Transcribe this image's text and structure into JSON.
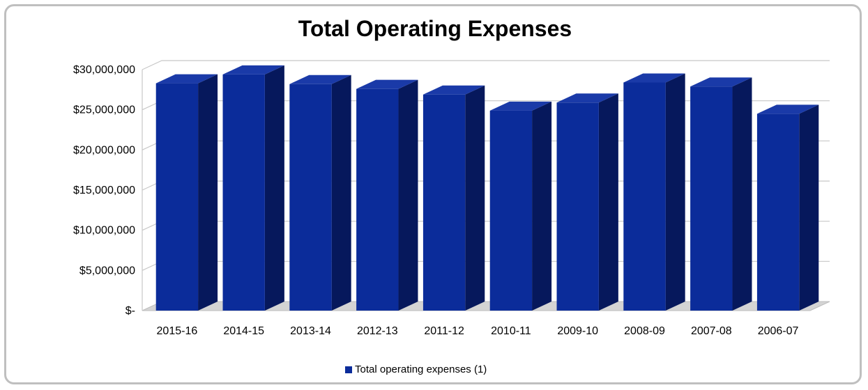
{
  "chart_data": {
    "type": "bar",
    "title": "Total Operating Expenses",
    "xlabel": "",
    "ylabel": "",
    "categories": [
      "2015-16",
      "2014-15",
      "2013-14",
      "2012-13",
      "2011-12",
      "2010-11",
      "2009-10",
      "2008-09",
      "2007-08",
      "2006-07"
    ],
    "series": [
      {
        "name": "Total operating expenses (1)",
        "values": [
          28300000,
          29400000,
          28200000,
          27600000,
          26900000,
          24900000,
          25900000,
          28400000,
          27900000,
          24500000
        ],
        "color": "#0b2c9a"
      }
    ],
    "ylim": [
      0,
      30000000
    ],
    "yticks": [
      0,
      5000000,
      10000000,
      15000000,
      20000000,
      25000000,
      30000000
    ],
    "ytick_labels": [
      "$-",
      "$5,000,000",
      "$10,000,000",
      "$15,000,000",
      "$20,000,000",
      "$25,000,000",
      "$30,000,000"
    ],
    "grid": true,
    "legend_position": "bottom-center",
    "style": "3d-column"
  }
}
